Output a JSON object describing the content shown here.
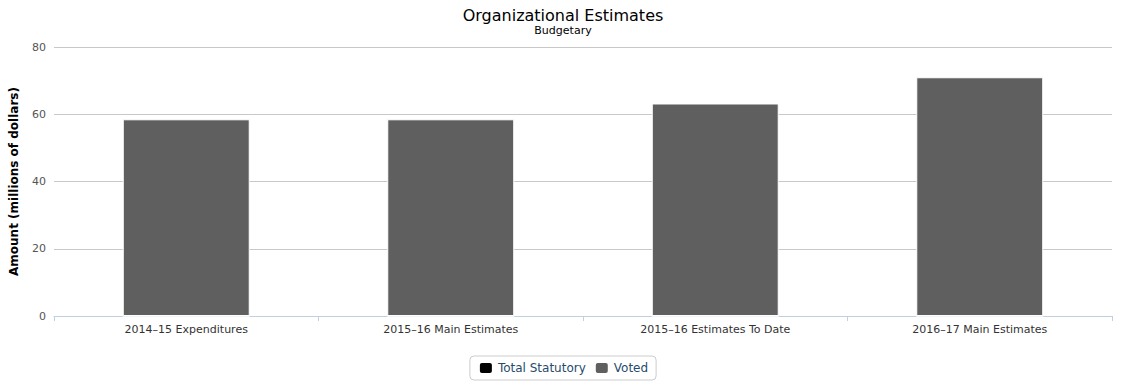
{
  "chart_data": {
    "type": "bar",
    "title": "Organizational Estimates",
    "subtitle": "Budgetary",
    "y_label": "Amount (millions of dollars)",
    "categories": [
      "2014–15 Expenditures",
      "2015–16 Main Estimates",
      "2015–16 Estimates To Date",
      "2016–17 Main Estimates"
    ],
    "series": [
      {
        "name": "Total Statutory",
        "color": "#000000",
        "values": [
          0,
          0,
          0,
          0
        ]
      },
      {
        "name": "Voted",
        "color": "#5f5f5f",
        "values": [
          58.5,
          58.5,
          63.2,
          71
        ]
      }
    ],
    "stacked": true,
    "ylim": [
      0,
      80
    ],
    "yticks": [
      0,
      20,
      40,
      60,
      80
    ],
    "grid": true,
    "legend": "bottom"
  }
}
